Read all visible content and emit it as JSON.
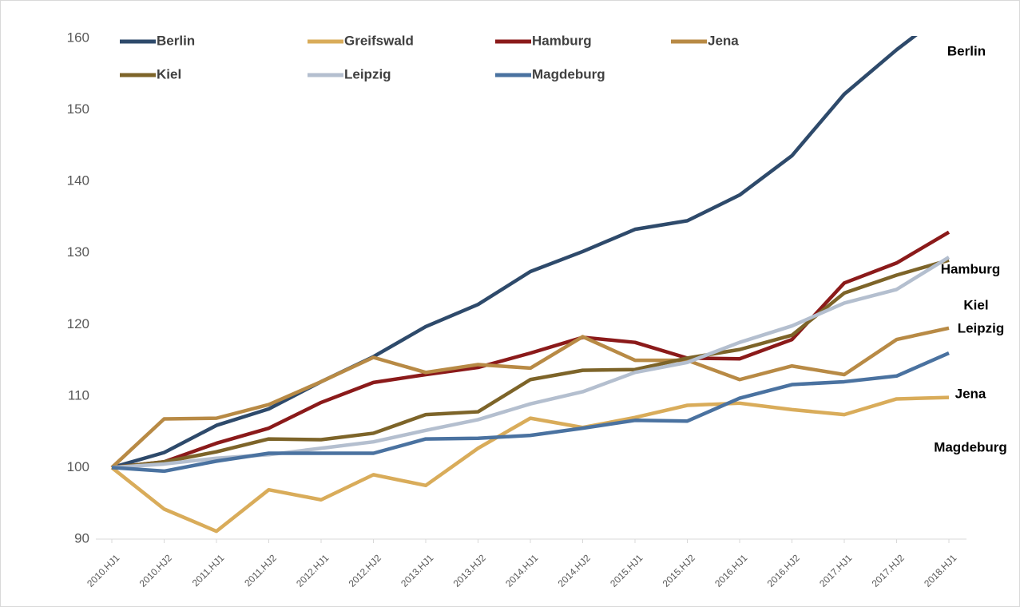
{
  "chart_data": {
    "type": "line",
    "categories": [
      "2010.HJ1",
      "2010.HJ2",
      "2011.HJ1",
      "2011.HJ2",
      "2012.HJ1",
      "2012.HJ2",
      "2013.HJ1",
      "2013.HJ2",
      "2014.HJ1",
      "2014.HJ2",
      "2015.HJ1",
      "2015.HJ2",
      "2016.HJ1",
      "2016.HJ2",
      "2017.HJ1",
      "2017.HJ2",
      "2018.HJ1"
    ],
    "series": [
      {
        "name": "Berlin",
        "color": "#2e4a6b",
        "values": [
          100,
          102.1,
          105.9,
          108.2,
          112,
          115.5,
          119.7,
          122.8,
          127.4,
          130.2,
          133.3,
          134.5,
          138.1,
          143.6,
          152.2,
          158.4,
          164
        ]
      },
      {
        "name": "Greifswald",
        "color": "#d9ac5a",
        "values": [
          100,
          94.2,
          91.1,
          96.9,
          95.5,
          99,
          97.5,
          102.7,
          106.9,
          105.6,
          107,
          108.7,
          109,
          108.1,
          107.4,
          109.6,
          109.8
        ]
      },
      {
        "name": "Hamburg",
        "color": "#8b1a1a",
        "values": [
          100,
          100.8,
          103.4,
          105.5,
          109.1,
          111.9,
          113,
          114,
          116,
          118.2,
          117.5,
          115.3,
          115.2,
          117.9,
          125.8,
          128.6,
          132.9
        ]
      },
      {
        "name": "Jena",
        "color": "#b88a45",
        "values": [
          100,
          106.8,
          106.9,
          108.8,
          112,
          115.4,
          113.3,
          114.4,
          113.9,
          118.3,
          115,
          115,
          112.3,
          114.2,
          113,
          117.9,
          119.5
        ]
      },
      {
        "name": "Kiel",
        "color": "#7d6429",
        "values": [
          100,
          100.8,
          102.2,
          104,
          103.9,
          104.8,
          107.4,
          107.8,
          112.3,
          113.6,
          113.7,
          115.3,
          116.5,
          118.5,
          124.4,
          126.9,
          129
        ]
      },
      {
        "name": "Leipzig",
        "color": "#b4bfcf",
        "values": [
          100,
          100.5,
          101.3,
          101.8,
          102.7,
          103.6,
          105.2,
          106.7,
          108.9,
          110.6,
          113.3,
          114.7,
          117.5,
          119.8,
          123,
          124.9,
          129.4
        ]
      },
      {
        "name": "Magdeburg",
        "color": "#4a72a0",
        "values": [
          100,
          99.5,
          100.9,
          102,
          102,
          102,
          104,
          104.1,
          104.5,
          105.5,
          106.6,
          106.5,
          109.7,
          111.6,
          112,
          112.8,
          116
        ]
      }
    ],
    "annotations": [
      "Berlin",
      "Hamburg",
      "Kiel",
      "Leipzig",
      "Jena",
      "Magdeburg"
    ],
    "ylim": [
      90,
      160
    ],
    "yticks": [
      90,
      100,
      110,
      120,
      130,
      140,
      150,
      160
    ],
    "grid": false
  }
}
